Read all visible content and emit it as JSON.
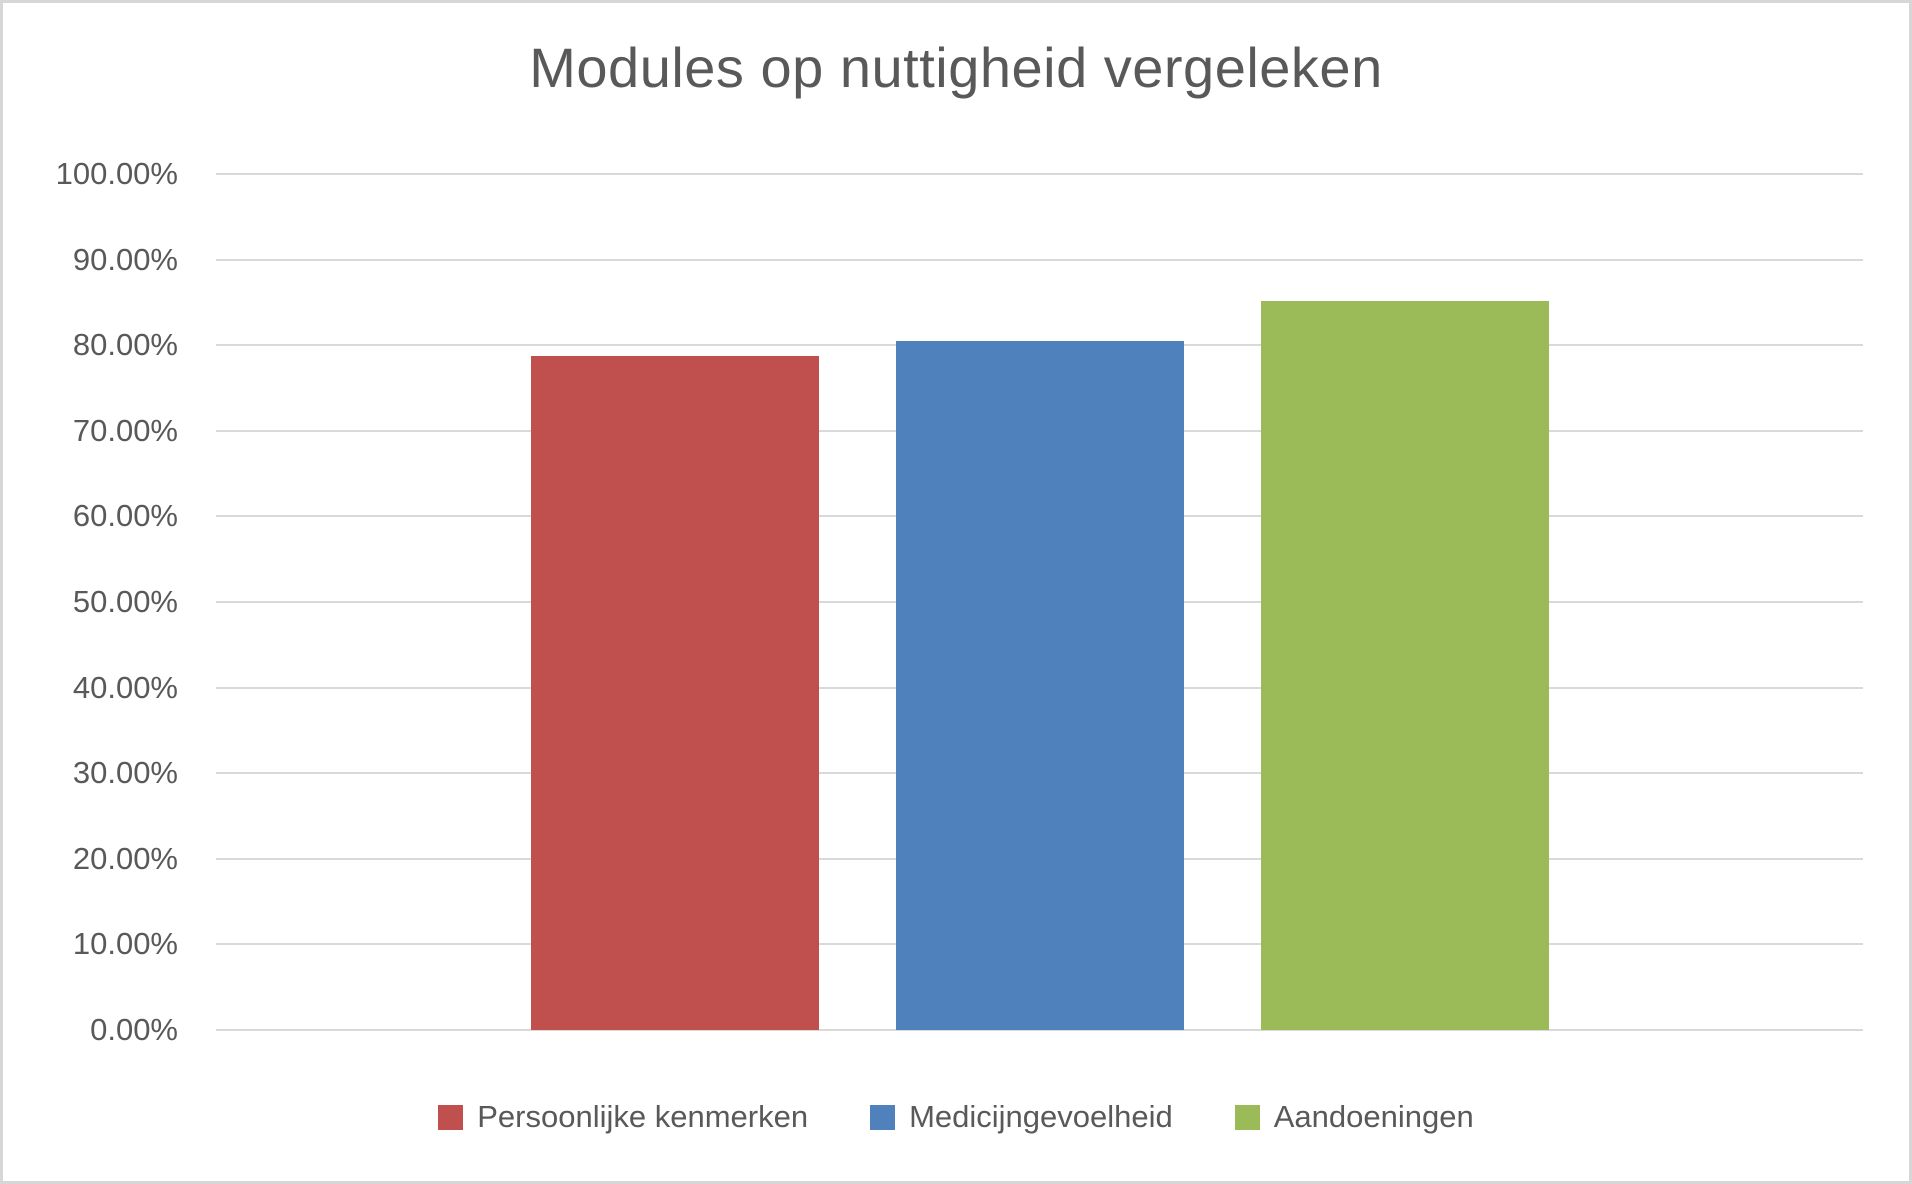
{
  "chart_data": {
    "type": "bar",
    "title": "Modules op nuttigheid vergeleken",
    "categories": [
      ""
    ],
    "series": [
      {
        "name": "Persoonlijke kenmerken",
        "color": "#C0504D",
        "values": [
          78.7
        ]
      },
      {
        "name": "Medicijngevoelheid",
        "color": "#4F81BD",
        "values": [
          80.5
        ]
      },
      {
        "name": "Aandoeningen",
        "color": "#9BBB59",
        "values": [
          85.2
        ]
      }
    ],
    "xlabel": "",
    "ylabel": "",
    "ylim": [
      0,
      100
    ],
    "ytick_step": 10,
    "ytick_labels": [
      "0.00%",
      "10.00%",
      "20.00%",
      "30.00%",
      "40.00%",
      "50.00%",
      "60.00%",
      "70.00%",
      "80.00%",
      "90.00%",
      "100.00%"
    ],
    "grid": true,
    "legend_position": "bottom"
  },
  "styles": {
    "background_color": "#FFFFFF",
    "border_color": "#D7D7D7",
    "text_color": "#595959",
    "gridline_color": "#D9D9D9"
  }
}
